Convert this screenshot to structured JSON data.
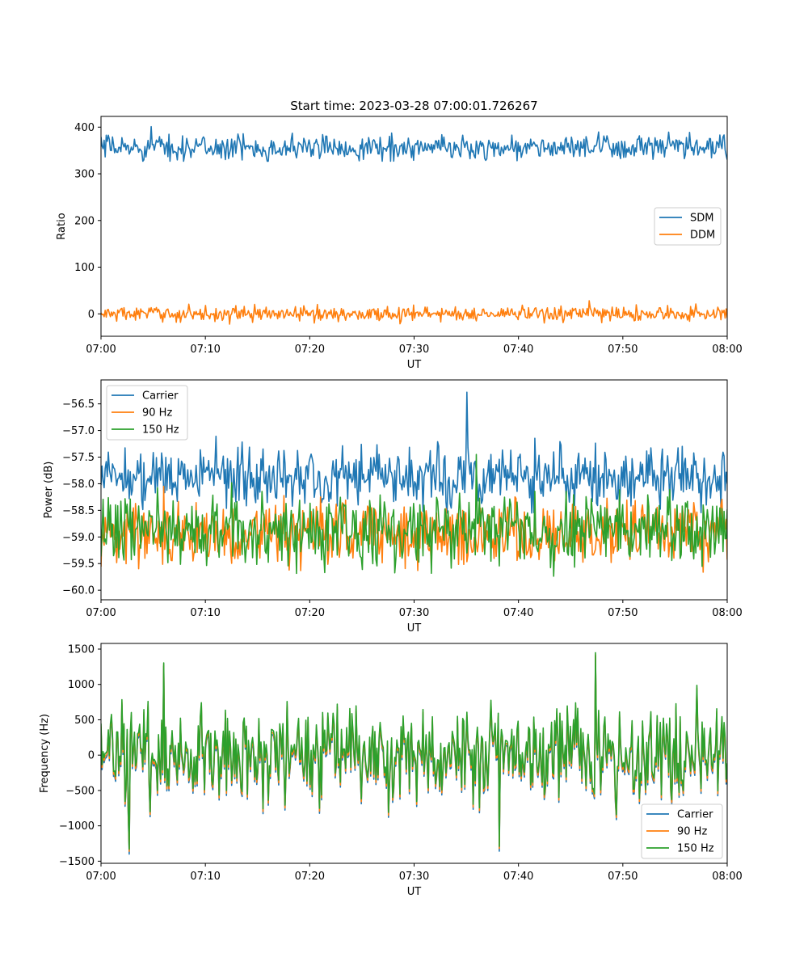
{
  "figure": {
    "title": "Start time: 2023-03-28 07:00:01.726267"
  },
  "colors": {
    "c0": "#1f77b4",
    "c1": "#ff7f0e",
    "c2": "#2ca02c"
  },
  "chart_data": [
    {
      "type": "line",
      "title": "Start time: 2023-03-28 07:00:01.726267",
      "xlabel": "UT",
      "ylabel": "Ratio",
      "x_range": [
        "07:00",
        "08:00"
      ],
      "x_ticks": [
        "07:00",
        "07:10",
        "07:20",
        "07:30",
        "07:40",
        "07:50",
        "08:00"
      ],
      "ylim": [
        -48,
        423
      ],
      "y_ticks": [
        400,
        300,
        200,
        100,
        0
      ],
      "legend": "center-right",
      "grid": false,
      "series": [
        {
          "name": "SDM",
          "color": "#1f77b4",
          "points": 600,
          "mean": 356,
          "spread": 13,
          "max_at": 0.08,
          "max": 401,
          "min": 327
        },
        {
          "name": "DDM",
          "color": "#ff7f0e",
          "points": 600,
          "mean": 0,
          "spread": 8,
          "max_at": 0.78,
          "max": 28,
          "min": -25
        }
      ]
    },
    {
      "type": "line",
      "title": "",
      "xlabel": "UT",
      "ylabel": "Power (dB)",
      "x_range": [
        "07:00",
        "08:00"
      ],
      "x_ticks": [
        "07:00",
        "07:10",
        "07:20",
        "07:30",
        "07:40",
        "07:50",
        "08:00"
      ],
      "ylim": [
        -60.18,
        -56.05
      ],
      "y_ticks": [
        -56.5,
        -57.0,
        -57.5,
        -58.0,
        -58.5,
        -59.0,
        -59.5,
        -60.0
      ],
      "legend": "top-left",
      "grid": false,
      "series": [
        {
          "name": "Carrier",
          "color": "#1f77b4",
          "points": 600,
          "mean": -57.85,
          "spread": 0.28,
          "max_at": 0.585,
          "max": -56.28,
          "min": -58.55
        },
        {
          "name": "90 Hz",
          "color": "#ff7f0e",
          "points": 600,
          "mean": -58.92,
          "spread": 0.3,
          "max_at": 0.1,
          "max": -58.05,
          "min": -60.03
        },
        {
          "name": "150 Hz",
          "color": "#2ca02c",
          "points": 600,
          "mean": -58.85,
          "spread": 0.32,
          "max_at": 0.6,
          "max": -57.45,
          "min": -60.16
        }
      ]
    },
    {
      "type": "line",
      "title": "",
      "xlabel": "UT",
      "ylabel": "Frequency (Hz)",
      "x_range": [
        "07:00",
        "08:00"
      ],
      "x_ticks": [
        "07:00",
        "07:10",
        "07:20",
        "07:30",
        "07:40",
        "07:50",
        "08:00"
      ],
      "ylim": [
        -1530,
        1580
      ],
      "y_ticks": [
        1500,
        1000,
        500,
        0,
        -500,
        -1000,
        -1500
      ],
      "legend": "bottom-right",
      "grid": false,
      "series": [
        {
          "name": "Carrier",
          "color": "#1f77b4",
          "points": 600,
          "mean": -40,
          "spread": 330,
          "max_at": 0.79,
          "max": 1400,
          "min": -1400
        },
        {
          "name": "90 Hz",
          "color": "#ff7f0e",
          "points": 600,
          "mean": -10,
          "spread": 330,
          "max_at": 0.79,
          "max": 1420,
          "min": -1360
        },
        {
          "name": "150 Hz",
          "color": "#2ca02c",
          "points": 600,
          "mean": 30,
          "spread": 330,
          "max_at": 0.79,
          "max": 1450,
          "min": -1330
        }
      ]
    }
  ]
}
